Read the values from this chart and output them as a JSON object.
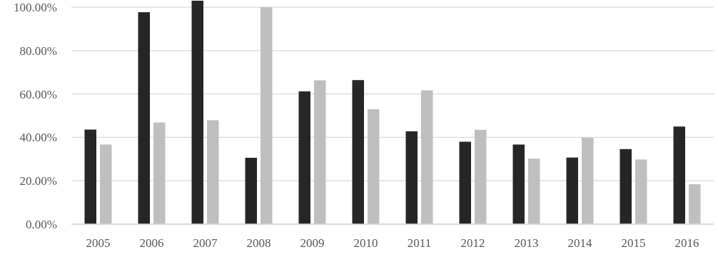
{
  "chart_data": {
    "type": "bar",
    "categories": [
      "2005",
      "2006",
      "2007",
      "2008",
      "2009",
      "2010",
      "2011",
      "2012",
      "2013",
      "2014",
      "2015",
      "2016"
    ],
    "series": [
      {
        "color": "#262626",
        "values": [
          43.6,
          97.7,
          103,
          30.6,
          61.2,
          66.4,
          42.8,
          38.0,
          36.7,
          30.7,
          34.6,
          45.0
        ]
      },
      {
        "color": "#bfbfbf",
        "values": [
          36.7,
          46.9,
          47.9,
          100,
          66.3,
          53.0,
          61.7,
          43.5,
          30.2,
          39.8,
          29.8,
          18.4
        ]
      }
    ],
    "ylim": [
      0,
      103
    ],
    "yticks": [
      {
        "value": 0,
        "label": "0.00%"
      },
      {
        "value": 20,
        "label": "20.00%"
      },
      {
        "value": 40,
        "label": "40.00%"
      },
      {
        "value": 60,
        "label": "60.00%"
      },
      {
        "value": 80,
        "label": "80.00%"
      },
      {
        "value": 100,
        "label": "100.00%"
      }
    ],
    "grid": "y"
  }
}
